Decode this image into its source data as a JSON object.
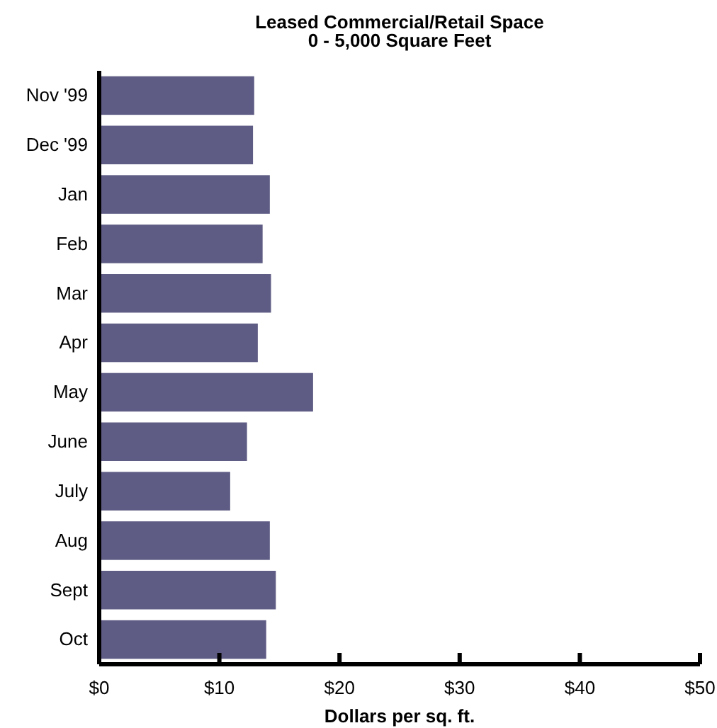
{
  "chart_data": {
    "type": "bar",
    "orientation": "horizontal",
    "title": "Leased Commercial/Retail Space",
    "subtitle": "0 - 5,000 Square Feet",
    "xlabel": "Dollars per sq. ft.",
    "categories": [
      "Nov '99",
      "Dec '99",
      "Jan",
      "Feb",
      "Mar",
      "Apr",
      "May",
      "June",
      "July",
      "Aug",
      "Sept",
      "Oct"
    ],
    "values": [
      12.9,
      12.8,
      14.2,
      13.6,
      14.3,
      13.2,
      17.8,
      12.3,
      10.9,
      14.2,
      14.7,
      13.9
    ],
    "color": "#5e5c84",
    "xlim": [
      0,
      50
    ],
    "xticks": [
      {
        "value": 0,
        "label": "$0"
      },
      {
        "value": 10,
        "label": "$10"
      },
      {
        "value": 20,
        "label": "$20"
      },
      {
        "value": 30,
        "label": "$30"
      },
      {
        "value": 40,
        "label": "$40"
      },
      {
        "value": 50,
        "label": "$50"
      }
    ],
    "grid": false
  }
}
